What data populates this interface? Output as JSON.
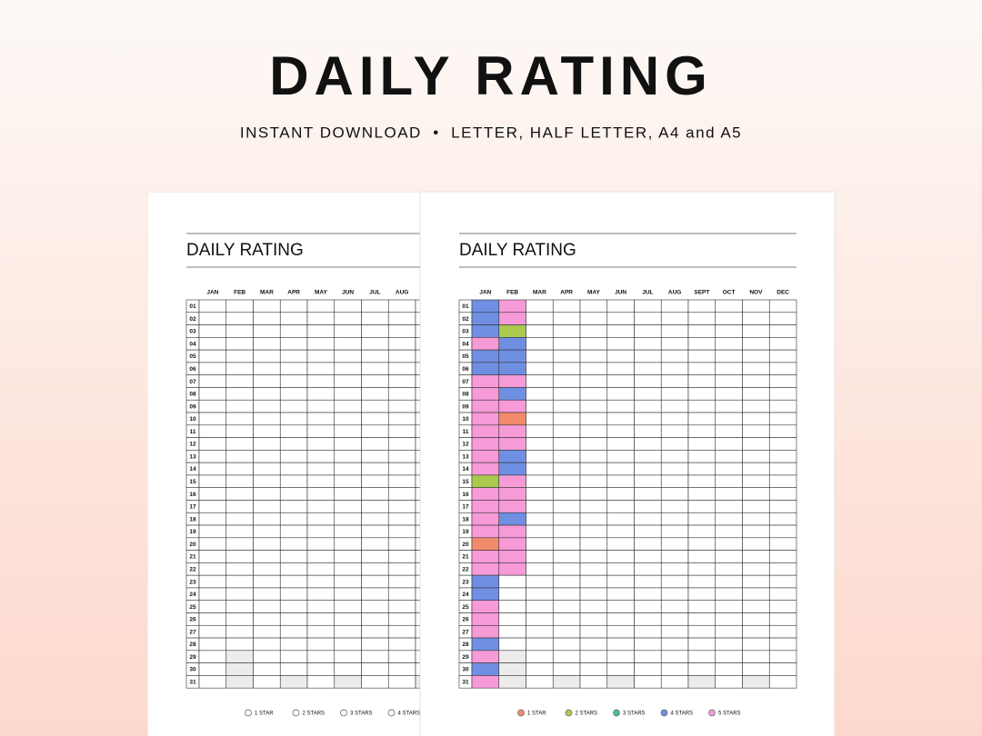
{
  "header": {
    "title": "DAILY RATING",
    "subtitle": "INSTANT DOWNLOAD  •  LETTER, HALF LETTER, A4 and A5"
  },
  "pages": [
    {
      "title": "DAILY RATING",
      "months": [
        "JAN",
        "FEB",
        "MAR",
        "APR",
        "MAY",
        "JUN",
        "JUL",
        "AUG"
      ],
      "days": [
        "01",
        "02",
        "03",
        "04",
        "05",
        "06",
        "07",
        "08",
        "09",
        "10",
        "11",
        "12",
        "13",
        "14",
        "15",
        "16",
        "17",
        "18",
        "19",
        "20",
        "21",
        "22",
        "23",
        "24",
        "25",
        "26",
        "27",
        "28",
        "29",
        "30",
        "31"
      ],
      "legend": [
        {
          "label": "1 STAR"
        },
        {
          "label": "2 STARS"
        },
        {
          "label": "3 STARS"
        },
        {
          "label": "4 STARS"
        }
      ]
    },
    {
      "title": "DAILY RATING",
      "months": [
        "JAN",
        "FEB",
        "MAR",
        "APR",
        "MAY",
        "JUN",
        "JUL",
        "AUG",
        "SEPT",
        "OCT",
        "NOV",
        "DEC"
      ],
      "days": [
        "01",
        "02",
        "03",
        "04",
        "05",
        "06",
        "07",
        "08",
        "09",
        "10",
        "11",
        "12",
        "13",
        "14",
        "15",
        "16",
        "17",
        "18",
        "19",
        "20",
        "21",
        "22",
        "23",
        "24",
        "25",
        "26",
        "27",
        "28",
        "29",
        "30",
        "31"
      ],
      "legend": [
        {
          "label": "1 STAR",
          "color": "#f28b6c"
        },
        {
          "label": "2 STARS",
          "color": "#a9c94f"
        },
        {
          "label": "3 STARS",
          "color": "#4cbf8c"
        },
        {
          "label": "4 STARS",
          "color": "#6f8fe3"
        },
        {
          "label": "5 STARS",
          "color": "#f79ad8"
        }
      ],
      "ratings": [
        [
          4,
          4,
          4,
          5,
          4,
          4,
          5,
          5,
          5,
          5,
          5,
          5,
          5,
          5,
          2,
          5,
          5,
          5,
          5,
          1,
          5,
          5,
          4,
          4,
          5,
          5,
          5,
          4,
          5,
          4,
          5
        ],
        [
          5,
          5,
          2,
          4,
          4,
          4,
          5,
          4,
          5,
          1,
          5,
          5,
          4,
          4,
          5,
          5,
          5,
          4,
          5,
          5,
          5,
          5
        ]
      ]
    }
  ]
}
